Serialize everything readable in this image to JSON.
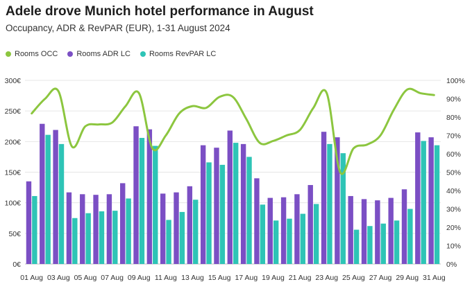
{
  "chart_data": {
    "type": "bar",
    "title": "Adele drove Munich hotel performance in August",
    "subtitle": "Occupancy, ADR & RevPAR (EUR), 1-31 August 2024",
    "days": [
      1,
      2,
      3,
      4,
      5,
      6,
      7,
      8,
      9,
      10,
      11,
      12,
      13,
      14,
      15,
      16,
      17,
      18,
      19,
      20,
      21,
      22,
      23,
      24,
      25,
      26,
      27,
      28,
      29,
      30,
      31
    ],
    "x_tick_labels": [
      "01 Aug",
      "03 Aug",
      "05 Aug",
      "07 Aug",
      "09 Aug",
      "11 Aug",
      "13 Aug",
      "15 Aug",
      "17 Aug",
      "19 Aug",
      "21 Aug",
      "23 Aug",
      "25 Aug",
      "27 Aug",
      "29 Aug",
      "31 Aug"
    ],
    "y_left": {
      "ticks": [
        "0€",
        "50€",
        "100€",
        "150€",
        "200€",
        "250€",
        "300€"
      ],
      "range": [
        0,
        300
      ]
    },
    "y_right": {
      "ticks": [
        "0%",
        "10%",
        "20%",
        "30%",
        "40%",
        "50%",
        "60%",
        "70%",
        "80%",
        "90%",
        "100%"
      ],
      "range": [
        0,
        100
      ]
    },
    "legend_position": "top-left",
    "series": [
      {
        "name": "Rooms OCC",
        "kind": "line",
        "axis": "right",
        "color": "#8cc63f",
        "values": [
          82,
          90,
          94,
          64,
          75,
          76,
          77,
          86,
          93,
          63,
          70,
          82,
          86,
          85,
          91,
          91,
          79,
          66,
          67,
          70,
          73,
          85,
          93,
          50,
          63,
          65,
          70,
          84,
          95,
          93,
          92
        ]
      },
      {
        "name": "Rooms ADR LC",
        "kind": "bar",
        "axis": "left",
        "color": "#7b4fc4",
        "values": [
          135,
          229,
          219,
          117,
          114,
          113,
          114,
          132,
          225,
          220,
          115,
          117,
          127,
          194,
          190,
          218,
          196,
          140,
          108,
          109,
          114,
          129,
          216,
          207,
          111,
          106,
          104,
          108,
          122,
          215,
          207
        ]
      },
      {
        "name": "Rooms RevPAR LC",
        "kind": "bar",
        "axis": "left",
        "color": "#2ec4b6",
        "values": [
          111,
          211,
          196,
          75,
          83,
          86,
          87,
          107,
          206,
          193,
          72,
          85,
          105,
          166,
          162,
          198,
          175,
          97,
          71,
          74,
          82,
          98,
          196,
          181,
          56,
          62,
          66,
          71,
          90,
          201,
          194
        ]
      }
    ]
  }
}
